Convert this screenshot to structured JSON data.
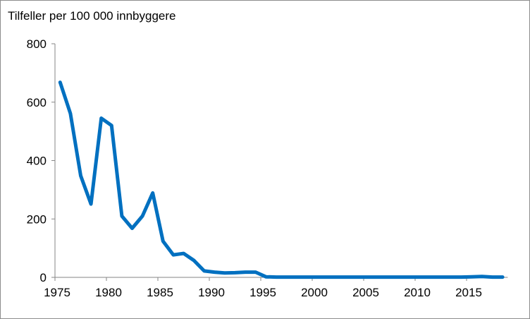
{
  "chart_data": {
    "type": "line",
    "title": "Tilfeller per 100 000 innbyggere",
    "xlabel": "",
    "ylabel": "",
    "ylim": [
      0,
      800
    ],
    "yticks": [
      0,
      200,
      400,
      600,
      800
    ],
    "xticks": [
      "1975",
      "1980",
      "1985",
      "1990",
      "1995",
      "2000",
      "2005",
      "2010",
      "2015"
    ],
    "color": "#0070c0",
    "grid": false,
    "x": [
      1975,
      1976,
      1977,
      1978,
      1979,
      1980,
      1981,
      1982,
      1983,
      1984,
      1985,
      1986,
      1987,
      1988,
      1989,
      1990,
      1991,
      1992,
      1993,
      1994,
      1995,
      1996,
      1997,
      1998,
      1999,
      2000,
      2001,
      2002,
      2003,
      2004,
      2005,
      2006,
      2007,
      2008,
      2009,
      2010,
      2011,
      2012,
      2013,
      2014,
      2015,
      2016,
      2017,
      2018
    ],
    "series": [
      {
        "name": "Tilfeller",
        "values": [
          668,
          561,
          348,
          251,
          545,
          520,
          210,
          168,
          210,
          289,
          124,
          77,
          82,
          58,
          22,
          18,
          15,
          16,
          18,
          18,
          2,
          1,
          1,
          1,
          1,
          1,
          1,
          1,
          1,
          1,
          1,
          1,
          1,
          1,
          1,
          1,
          1,
          1,
          1,
          1,
          2,
          3,
          1,
          1
        ]
      }
    ]
  }
}
